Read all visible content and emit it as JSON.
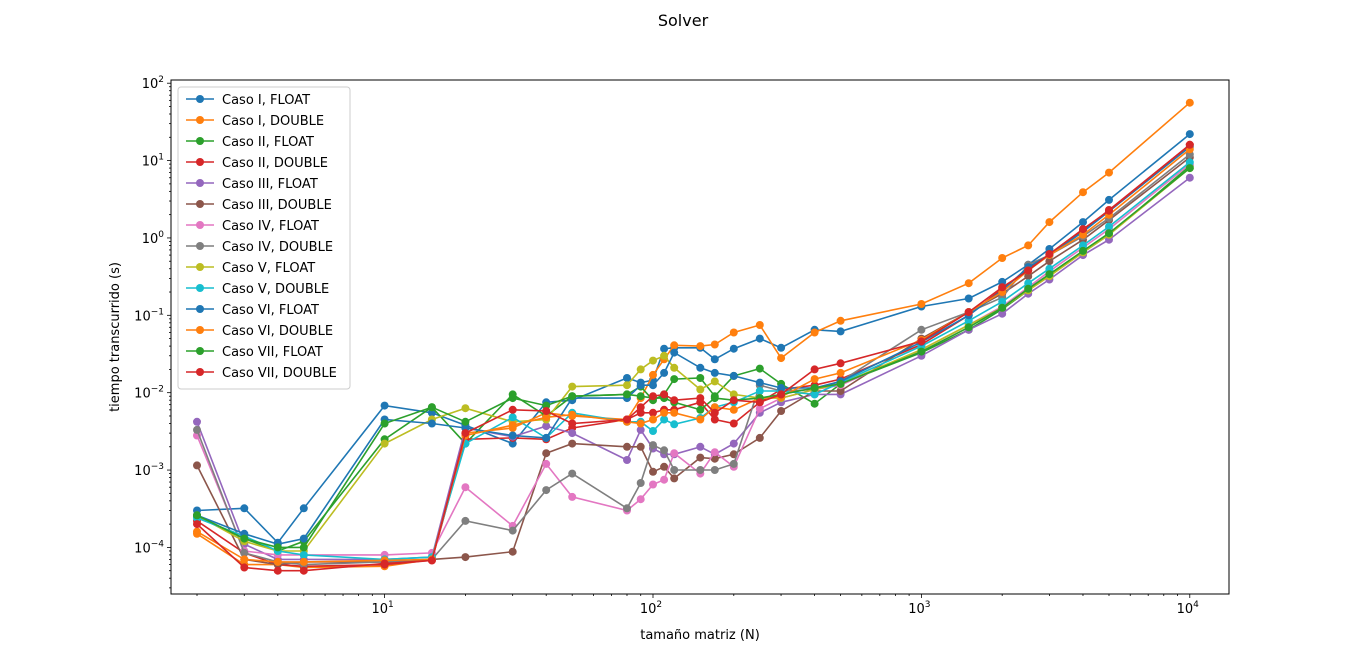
{
  "chart_data": {
    "type": "line",
    "title": "Solver",
    "xlabel": "tamaño matriz (N)",
    "ylabel": "tiempo transcurrido (s)",
    "xscale": "log",
    "yscale": "log",
    "xlim": [
      1.6,
      14000
    ],
    "ylim": [
      2.5e-05,
      110
    ],
    "x_ticks": [
      {
        "value": 10,
        "base": "10",
        "exp": "1"
      },
      {
        "value": 100,
        "base": "10",
        "exp": "2"
      },
      {
        "value": 1000,
        "base": "10",
        "exp": "3"
      },
      {
        "value": 10000,
        "base": "10",
        "exp": "4"
      }
    ],
    "y_ticks": [
      {
        "value": 0.0001,
        "base": "10",
        "exp": "−4"
      },
      {
        "value": 0.001,
        "base": "10",
        "exp": "−3"
      },
      {
        "value": 0.01,
        "base": "10",
        "exp": "−2"
      },
      {
        "value": 0.1,
        "base": "10",
        "exp": "−1"
      },
      {
        "value": 1,
        "base": "10",
        "exp": "0"
      },
      {
        "value": 10,
        "base": "10",
        "exp": "1"
      },
      {
        "value": 100,
        "base": "10",
        "exp": "2"
      }
    ],
    "grid": false,
    "legend_position": "upper-left",
    "series": [
      {
        "name": "Caso I, FLOAT",
        "color": "#1f77b4",
        "x": [
          2,
          3,
          4,
          5,
          10,
          15,
          20,
          30,
          40,
          50,
          80,
          90,
          100,
          110,
          120,
          150,
          170,
          200,
          250,
          300,
          400,
          500,
          1000,
          1500,
          2000,
          2500,
          3000,
          4000,
          5000,
          10000
        ],
        "y": [
          0.0003,
          0.00032,
          0.000115,
          0.00032,
          0.0068,
          0.0055,
          0.0038,
          0.0022,
          0.0075,
          0.008,
          0.0155,
          0.0135,
          0.0145,
          0.037,
          0.038,
          0.038,
          0.027,
          0.037,
          0.05,
          0.038,
          0.065,
          0.062,
          0.13,
          0.165,
          0.27,
          0.45,
          0.72,
          1.6,
          3.1,
          22
        ]
      },
      {
        "name": "Caso I, DOUBLE",
        "color": "#ff7f0e",
        "x": [
          2,
          3,
          4,
          5,
          10,
          15,
          20,
          30,
          40,
          50,
          80,
          90,
          100,
          110,
          120,
          150,
          170,
          200,
          250,
          300,
          400,
          500,
          1000,
          1500,
          2000,
          2500,
          3000,
          4000,
          5000,
          10000
        ],
        "y": [
          0.00015,
          6e-05,
          6e-05,
          5.5e-05,
          5.7e-05,
          7e-05,
          0.003,
          0.0035,
          0.0055,
          0.005,
          0.0045,
          0.0085,
          0.017,
          0.027,
          0.041,
          0.04,
          0.042,
          0.06,
          0.075,
          0.028,
          0.06,
          0.085,
          0.14,
          0.26,
          0.55,
          0.8,
          1.6,
          3.9,
          7,
          56
        ]
      },
      {
        "name": "Caso II, FLOAT",
        "color": "#2ca02c",
        "x": [
          2,
          3,
          4,
          5,
          10,
          15,
          20,
          30,
          40,
          50,
          80,
          90,
          100,
          110,
          120,
          150,
          170,
          200,
          250,
          300,
          400,
          500,
          1000,
          1500,
          2000,
          2500,
          3000,
          4000,
          5000,
          10000
        ],
        "y": [
          0.00025,
          0.00013,
          9e-05,
          0.00012,
          0.0025,
          0.0065,
          0.0022,
          0.0095,
          0.005,
          0.009,
          0.0095,
          0.012,
          0.008,
          0.0095,
          0.015,
          0.0155,
          0.009,
          0.0165,
          0.0205,
          0.013,
          0.0072,
          0.013,
          0.033,
          0.065,
          0.12,
          0.21,
          0.33,
          0.65,
          1.1,
          8.5
        ]
      },
      {
        "name": "Caso II, DOUBLE",
        "color": "#d62728",
        "x": [
          2,
          3,
          4,
          5,
          10,
          15,
          20,
          30,
          40,
          50,
          80,
          90,
          100,
          110,
          120,
          150,
          170,
          200,
          250,
          300,
          400,
          500,
          1000,
          1500,
          2000,
          2500,
          3000,
          4000,
          5000,
          10000
        ],
        "y": [
          0.00022,
          8.5e-05,
          6e-05,
          5.7e-05,
          6e-05,
          6.8e-05,
          0.0025,
          0.0026,
          0.0025,
          0.0035,
          0.0045,
          0.0055,
          0.0055,
          0.006,
          0.006,
          0.0075,
          0.0045,
          0.004,
          0.0075,
          0.011,
          0.0125,
          0.015,
          0.042,
          0.1,
          0.22,
          0.4,
          0.6,
          1.25,
          2.3,
          16
        ]
      },
      {
        "name": "Caso III, FLOAT",
        "color": "#9467bd",
        "x": [
          2,
          3,
          4,
          5,
          10,
          15,
          20,
          30,
          40,
          50,
          80,
          90,
          100,
          110,
          120,
          150,
          170,
          200,
          250,
          300,
          400,
          500,
          1000,
          1500,
          2000,
          2500,
          3000,
          4000,
          5000,
          10000
        ],
        "y": [
          0.0042,
          0.00011,
          7e-05,
          7e-05,
          7e-05,
          7.5e-05,
          0.0035,
          0.0027,
          0.0037,
          0.003,
          0.00135,
          0.0033,
          0.0019,
          0.0016,
          0.0016,
          0.002,
          0.0016,
          0.0022,
          0.0055,
          0.0075,
          0.0095,
          0.0095,
          0.03,
          0.065,
          0.105,
          0.19,
          0.29,
          0.6,
          0.95,
          6
        ]
      },
      {
        "name": "Caso III, DOUBLE",
        "color": "#8c564b",
        "x": [
          2,
          3,
          4,
          5,
          10,
          15,
          20,
          30,
          40,
          50,
          80,
          90,
          100,
          110,
          120,
          150,
          170,
          200,
          250,
          300,
          400,
          500,
          1000,
          1500,
          2000,
          2500,
          3000,
          4000,
          5000,
          10000
        ],
        "y": [
          0.00115,
          7e-05,
          6e-05,
          6.5e-05,
          6.5e-05,
          7e-05,
          7.5e-05,
          8.8e-05,
          0.00165,
          0.0022,
          0.002,
          0.002,
          0.00095,
          0.0011,
          0.00078,
          0.00145,
          0.0014,
          0.0016,
          0.0026,
          0.0058,
          0.0105,
          0.0105,
          0.05,
          0.11,
          0.19,
          0.32,
          0.5,
          0.95,
          1.7,
          11
        ]
      },
      {
        "name": "Caso IV, FLOAT",
        "color": "#e377c2",
        "x": [
          2,
          3,
          4,
          5,
          10,
          15,
          20,
          30,
          40,
          50,
          80,
          90,
          100,
          110,
          120,
          150,
          170,
          200,
          250,
          300,
          400,
          500,
          1000,
          1500,
          2000,
          2500,
          3000,
          4000,
          5000,
          10000
        ],
        "y": [
          0.0028,
          9e-05,
          8e-05,
          8e-05,
          8e-05,
          8.5e-05,
          0.0006,
          0.00019,
          0.0012,
          0.00045,
          0.0003,
          0.00042,
          0.00065,
          0.00075,
          0.00165,
          0.0009,
          0.0017,
          0.0011,
          0.0062,
          0.0085,
          0.011,
          0.0125,
          0.036,
          0.075,
          0.13,
          0.23,
          0.37,
          0.75,
          1.3,
          9
        ]
      },
      {
        "name": "Caso IV, DOUBLE",
        "color": "#7f7f7f",
        "x": [
          2,
          3,
          4,
          5,
          10,
          15,
          20,
          30,
          40,
          50,
          80,
          90,
          100,
          110,
          120,
          150,
          170,
          200,
          250,
          300,
          400,
          500,
          1000,
          1500,
          2000,
          2500,
          3000,
          4000,
          5000,
          10000
        ],
        "y": [
          0.0033,
          8.5e-05,
          6.5e-05,
          6e-05,
          6.5e-05,
          7e-05,
          0.00022,
          0.000165,
          0.00055,
          0.0009,
          0.00032,
          0.00068,
          0.0021,
          0.0018,
          0.001,
          0.001,
          0.001,
          0.0012,
          0.0125,
          0.0105,
          0.011,
          0.014,
          0.065,
          0.11,
          0.17,
          0.45,
          0.6,
          1.05,
          1.8,
          12
        ]
      },
      {
        "name": "Caso V, FLOAT",
        "color": "#bcbd22",
        "x": [
          2,
          3,
          4,
          5,
          10,
          15,
          20,
          30,
          40,
          50,
          80,
          90,
          100,
          110,
          120,
          150,
          170,
          200,
          250,
          300,
          400,
          500,
          1000,
          1500,
          2000,
          2500,
          3000,
          4000,
          5000,
          10000
        ],
        "y": [
          0.00026,
          0.00012,
          9e-05,
          9e-05,
          0.0022,
          0.0045,
          0.0063,
          0.0042,
          0.0045,
          0.012,
          0.0125,
          0.02,
          0.026,
          0.03,
          0.021,
          0.011,
          0.014,
          0.0095,
          0.0085,
          0.0085,
          0.011,
          0.013,
          0.036,
          0.075,
          0.125,
          0.21,
          0.32,
          0.65,
          1.1,
          8
        ]
      },
      {
        "name": "Caso V, DOUBLE",
        "color": "#17becf",
        "x": [
          2,
          3,
          4,
          5,
          10,
          15,
          20,
          30,
          40,
          50,
          80,
          90,
          100,
          110,
          120,
          150,
          170,
          200,
          250,
          300,
          400,
          500,
          1000,
          1500,
          2000,
          2500,
          3000,
          4000,
          5000,
          10000
        ],
        "y": [
          0.00024,
          0.00014,
          9e-05,
          8e-05,
          7e-05,
          7.5e-05,
          0.0022,
          0.0048,
          0.0026,
          0.0055,
          0.0042,
          0.0042,
          0.0032,
          0.0045,
          0.0039,
          0.0047,
          0.0065,
          0.0075,
          0.0105,
          0.0105,
          0.0095,
          0.0135,
          0.04,
          0.085,
          0.15,
          0.26,
          0.4,
          0.8,
          1.4,
          9.5
        ]
      },
      {
        "name": "Caso VI, FLOAT",
        "color": "#1f77b4",
        "x": [
          2,
          3,
          4,
          5,
          10,
          15,
          20,
          30,
          40,
          50,
          80,
          90,
          100,
          110,
          120,
          150,
          170,
          200,
          250,
          300,
          400,
          500,
          1000,
          1500,
          2000,
          2500,
          3000,
          4000,
          5000,
          10000
        ],
        "y": [
          0.00026,
          0.00015,
          0.00011,
          0.00013,
          0.0045,
          0.004,
          0.0035,
          0.0028,
          0.0026,
          0.0085,
          0.0085,
          0.0125,
          0.0125,
          0.018,
          0.033,
          0.021,
          0.018,
          0.0165,
          0.0135,
          0.0115,
          0.0115,
          0.014,
          0.045,
          0.1,
          0.21,
          0.42,
          0.6,
          1.2,
          2.2,
          15
        ]
      },
      {
        "name": "Caso VI, DOUBLE",
        "color": "#ff7f0e",
        "x": [
          2,
          3,
          4,
          5,
          10,
          15,
          20,
          30,
          40,
          50,
          80,
          90,
          100,
          110,
          120,
          150,
          170,
          200,
          250,
          300,
          400,
          500,
          1000,
          1500,
          2000,
          2500,
          3000,
          4000,
          5000,
          10000
        ],
        "y": [
          0.00016,
          7e-05,
          6.5e-05,
          6.5e-05,
          6.8e-05,
          7e-05,
          0.0028,
          0.0038,
          0.0048,
          0.0052,
          0.0042,
          0.004,
          0.0045,
          0.0055,
          0.0055,
          0.0045,
          0.0065,
          0.006,
          0.0085,
          0.0088,
          0.015,
          0.018,
          0.048,
          0.11,
          0.2,
          0.38,
          0.6,
          1.1,
          2,
          14
        ]
      },
      {
        "name": "Caso VII, FLOAT",
        "color": "#2ca02c",
        "x": [
          2,
          3,
          4,
          5,
          10,
          15,
          20,
          30,
          40,
          50,
          80,
          90,
          100,
          110,
          120,
          150,
          170,
          200,
          250,
          300,
          400,
          500,
          1000,
          1500,
          2000,
          2500,
          3000,
          4000,
          5000,
          10000
        ],
        "y": [
          0.00026,
          0.00013,
          0.0001,
          0.0001,
          0.004,
          0.0065,
          0.0042,
          0.0085,
          0.0068,
          0.009,
          0.0095,
          0.009,
          0.0085,
          0.0085,
          0.0075,
          0.006,
          0.0085,
          0.008,
          0.0085,
          0.0095,
          0.0115,
          0.013,
          0.034,
          0.07,
          0.125,
          0.22,
          0.34,
          0.68,
          1.15,
          8
        ]
      },
      {
        "name": "Caso VII, DOUBLE",
        "color": "#d62728",
        "x": [
          2,
          3,
          4,
          5,
          10,
          15,
          20,
          30,
          40,
          50,
          80,
          90,
          100,
          110,
          120,
          150,
          170,
          200,
          250,
          300,
          400,
          500,
          1000,
          1500,
          2000,
          2500,
          3000,
          4000,
          5000,
          10000
        ],
        "y": [
          0.0002,
          5.5e-05,
          5e-05,
          5e-05,
          6.2e-05,
          6.8e-05,
          0.003,
          0.006,
          0.0058,
          0.004,
          0.0045,
          0.0065,
          0.009,
          0.0095,
          0.008,
          0.0085,
          0.0055,
          0.008,
          0.0075,
          0.0095,
          0.02,
          0.024,
          0.046,
          0.11,
          0.23,
          0.38,
          0.62,
          1.3,
          2.25,
          16
        ]
      }
    ]
  }
}
